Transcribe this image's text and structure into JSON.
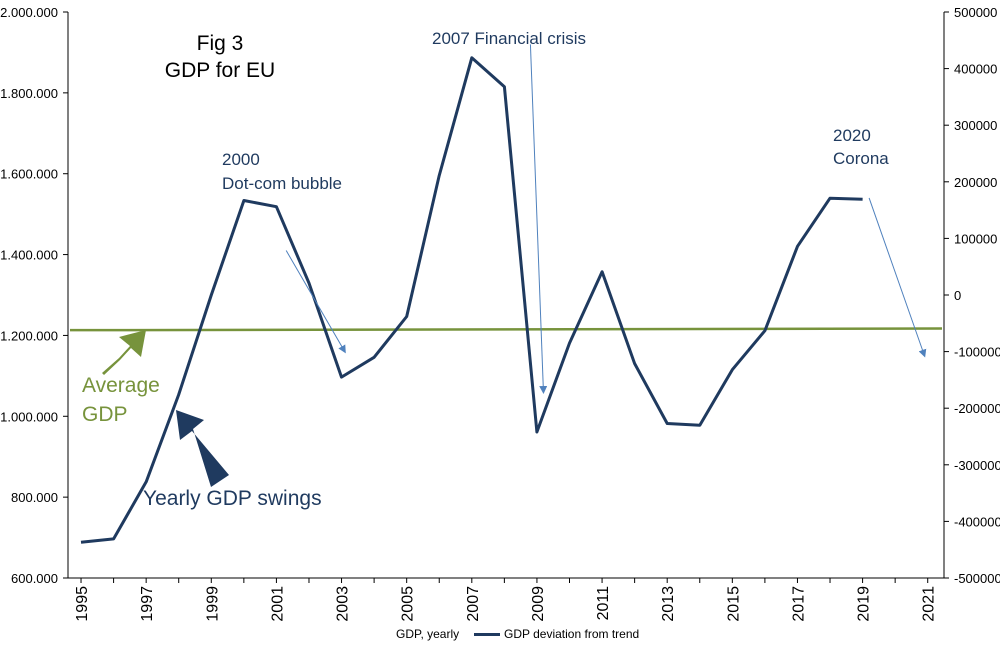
{
  "title": {
    "line1": "Fig 3",
    "line2": "GDP for EU"
  },
  "colors": {
    "series": "#1f3a5f",
    "average": "#77933c",
    "annotation": "#1f3a5f",
    "arrow": "#4f81bd"
  },
  "annotations": {
    "dotcom_year": "2000",
    "dotcom_label": "Dot-com bubble",
    "financial": "2007 Financial crisis",
    "corona_year": "2020",
    "corona_label": "Corona",
    "average_line1": "Average",
    "average_line2": "GDP",
    "swings": "Yearly GDP swings"
  },
  "legend": {
    "gdp": "GDP, yearly",
    "deviation": "GDP deviation from trend"
  },
  "chart_data": {
    "type": "line",
    "x_ticks": [
      "1995",
      "1997",
      "1999",
      "2001",
      "2003",
      "2005",
      "2007",
      "2009",
      "2011",
      "2013",
      "2015",
      "2017",
      "2019",
      "2021"
    ],
    "y_left": {
      "ticks": [
        "600.000",
        "800.000",
        "1.000.000",
        "1.200.000",
        "1.400.000",
        "1.600.000",
        "1.800.000",
        "2.000.000"
      ],
      "range": [
        600000,
        2000000
      ]
    },
    "y_right": {
      "ticks": [
        "-500000",
        "-400000",
        "-300000",
        "-200000",
        "-100000",
        "0",
        "100000",
        "200000",
        "300000",
        "400000",
        "500000"
      ],
      "range": [
        -500000,
        500000
      ]
    },
    "series": [
      {
        "name": "GDP deviation from trend",
        "axis": "right",
        "x": [
          1995,
          1996,
          1997,
          1998,
          1999,
          2000,
          2001,
          2002,
          2003,
          2004,
          2005,
          2006,
          2007,
          2008,
          2009,
          2010,
          2011,
          2012,
          2013,
          2014,
          2015,
          2016,
          2017,
          2018,
          2019
        ],
        "values": [
          -437000,
          -431000,
          -330000,
          -176000,
          0,
          167000,
          156000,
          21000,
          -145000,
          -110000,
          -38000,
          211000,
          419000,
          368000,
          -242000,
          -85000,
          41000,
          -121000,
          -227000,
          -230000,
          -132000,
          -63000,
          86000,
          171000,
          169000
        ]
      },
      {
        "name": "GDP, yearly",
        "axis": "left",
        "x": [
          1995,
          2021
        ],
        "values": [
          1213000,
          1217000
        ]
      }
    ],
    "annotation_arrows": [
      {
        "label": "2000 Dot-com bubble",
        "from_year": 2001.3,
        "from_value": 1410000,
        "to_year": 2003.1,
        "to_value": 1160000
      },
      {
        "label": "2007 Financial crisis",
        "from_year": 2008.8,
        "from_value": 1920000,
        "to_year": 2009.2,
        "to_value": 1060000
      },
      {
        "label": "2020 Corona",
        "from_year": 2019.2,
        "from_value": 1540000,
        "to_year": 2020.9,
        "to_value": 1150000
      }
    ]
  }
}
